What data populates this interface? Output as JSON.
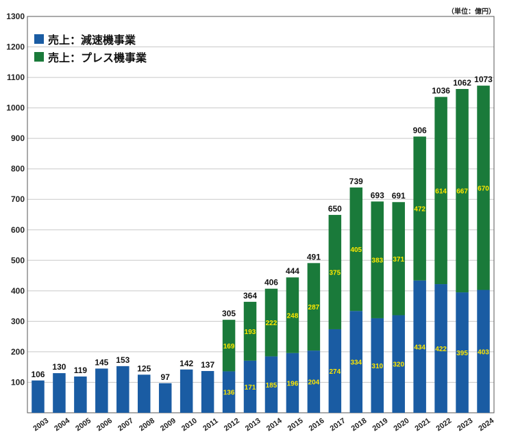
{
  "unit_label": "（単位：億円）",
  "colors": {
    "reduction": "#1a5ca3",
    "press": "#1a7a3a",
    "inner_label": "#ffe800",
    "grid": "#c8c8c8"
  },
  "chart_data": {
    "type": "bar",
    "stacked": true,
    "title": "",
    "xlabel": "",
    "ylabel": "",
    "ylim": [
      0,
      1300
    ],
    "yticks": [
      "100",
      "200",
      "300",
      "400",
      "500",
      "600",
      "700",
      "800",
      "900",
      "1000",
      "1100",
      "1200",
      "1300"
    ],
    "grid": true,
    "legend_position": "top-left",
    "categories": [
      "2003",
      "2004",
      "2005",
      "2006",
      "2007",
      "2008",
      "2009",
      "2010",
      "2011",
      "2012",
      "2013",
      "2014",
      "2015",
      "2016",
      "2017",
      "2018",
      "2019",
      "2020",
      "2021",
      "2022",
      "2023",
      "2024"
    ],
    "totals": [
      106,
      130,
      119,
      145,
      153,
      125,
      97,
      142,
      137,
      305,
      364,
      406,
      444,
      491,
      650,
      739,
      693,
      691,
      906,
      1036,
      1062,
      1073
    ],
    "series": [
      {
        "name": "売上：減速機事業",
        "color": "#1a5ca3",
        "values": [
          106,
          130,
          119,
          145,
          153,
          125,
          97,
          142,
          137,
          136,
          171,
          185,
          196,
          204,
          274,
          334,
          310,
          320,
          434,
          422,
          395,
          403
        ]
      },
      {
        "name": "売上：プレス機事業",
        "color": "#1a7a3a",
        "values": [
          0,
          0,
          0,
          0,
          0,
          0,
          0,
          0,
          0,
          169,
          193,
          222,
          248,
          287,
          375,
          405,
          383,
          371,
          472,
          614,
          667,
          670
        ]
      }
    ]
  }
}
